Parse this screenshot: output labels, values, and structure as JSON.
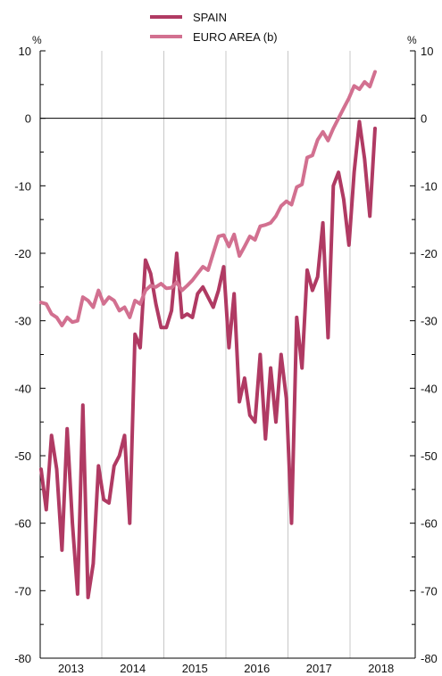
{
  "colors": {
    "spain": "#b03a63",
    "euro_area": "#d27090",
    "grid": "#c8c8c8",
    "axis": "#000000"
  },
  "legend": {
    "spain": "SPAIN",
    "euro_area": "EURO AREA (b)"
  },
  "units": {
    "left": "%",
    "right": "%"
  },
  "chart_data": {
    "type": "line",
    "ylim": [
      -80,
      10
    ],
    "yticks": [
      "10",
      "0",
      "-10",
      "-20",
      "-30",
      "-40",
      "-50",
      "-60",
      "-70",
      "-80"
    ],
    "xticks": [
      "2013",
      "2014",
      "2015",
      "2016",
      "2017",
      "2018"
    ],
    "series": [
      {
        "name": "SPAIN",
        "values": [
          -52,
          -58,
          -47,
          -52,
          -64,
          -46,
          -60,
          -70.5,
          -42.5,
          -71,
          -66,
          -51.5,
          -56.5,
          -57,
          -51.5,
          -50,
          -47,
          -60,
          -32,
          -34,
          -21,
          -23,
          -27.5,
          -31,
          -31,
          -28.5,
          -20,
          -29.5,
          -29,
          -29.5,
          -26,
          -25,
          -26.5,
          -28,
          -25.5,
          -22,
          -34,
          -26,
          -42,
          -38.5,
          -44,
          -45,
          -35,
          -47.5,
          -37,
          -45,
          -35,
          -41.5,
          -60,
          -29.5,
          -37,
          -22.5,
          -25.5,
          -23.5,
          -15.5,
          -32.5,
          -10,
          -8,
          -12,
          -18.8,
          -8,
          -0.5,
          -6,
          -14.5,
          -1.5
        ]
      },
      {
        "name": "EURO AREA (b)",
        "values": [
          -27.3,
          -27.5,
          -29,
          -29.5,
          -30.7,
          -29.5,
          -30.2,
          -30,
          -26.5,
          -27,
          -28,
          -25.5,
          -27.5,
          -26.5,
          -27,
          -28.5,
          -28,
          -29.5,
          -27,
          -27.5,
          -25.5,
          -24.8,
          -25,
          -24.5,
          -25.2,
          -25.1,
          -24.3,
          -25.5,
          -24.8,
          -24,
          -23,
          -22,
          -22.5,
          -20,
          -17.5,
          -17.3,
          -19,
          -17.2,
          -20.4,
          -19,
          -17.5,
          -18,
          -16,
          -15.8,
          -15.5,
          -14.5,
          -13,
          -12.3,
          -12.8,
          -10.2,
          -9.8,
          -5.8,
          -5.5,
          -3.2,
          -2,
          -3.3,
          -1.5,
          0,
          1.5,
          3,
          4.8,
          4.3,
          5.4,
          4.7,
          6.9
        ]
      }
    ]
  }
}
